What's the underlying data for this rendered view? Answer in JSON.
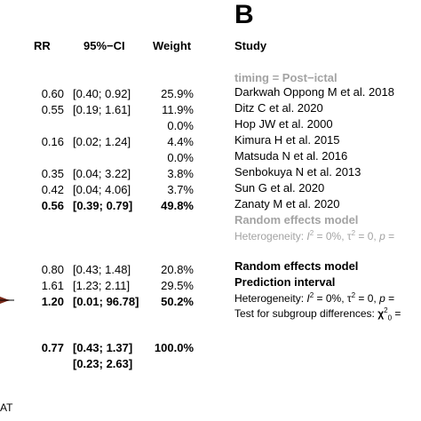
{
  "chart_data": {
    "type": "table",
    "panel_label": "B",
    "columns": {
      "rr": "RR",
      "ci": "95%−CI",
      "weight": "Weight",
      "study": "Study"
    },
    "rows": [
      {
        "kind": "subgroup",
        "study": "timing = Post−ictal"
      },
      {
        "kind": "study",
        "study": "Darkwah Oppong M et al. 2018",
        "rr": "0.60",
        "ci": "[0.40; 0.92]",
        "weight": "25.9%"
      },
      {
        "kind": "study",
        "study": "Ditz C et al. 2020",
        "rr": "0.55",
        "ci": "[0.19; 1.61]",
        "weight": "11.9%"
      },
      {
        "kind": "study",
        "study": "Hop JW et al. 2000",
        "rr": "",
        "ci": "",
        "weight": "0.0%"
      },
      {
        "kind": "study",
        "study": "Kimura H et al. 2015",
        "rr": "0.16",
        "ci": "[0.02; 1.24]",
        "weight": "4.4%"
      },
      {
        "kind": "study",
        "study": "Matsuda N et al. 2016",
        "rr": "",
        "ci": "",
        "weight": "0.0%"
      },
      {
        "kind": "study",
        "study": "Senbokuya N et al. 2013",
        "rr": "0.35",
        "ci": "[0.04; 3.22]",
        "weight": "3.8%"
      },
      {
        "kind": "study",
        "study": "Sun G et al. 2020",
        "rr": "0.42",
        "ci": "[0.04; 4.06]",
        "weight": "3.7%"
      },
      {
        "kind": "study",
        "study": "Zanaty M et al. 2020",
        "rr": "",
        "ci": "",
        "weight": ""
      },
      {
        "kind": "subtotal",
        "study": "Random effects model",
        "rr": "0.56",
        "ci": "[0.39; 0.79]",
        "weight": "49.8%"
      },
      {
        "kind": "heterogeneity",
        "study": "Heterogeneity: I² = 0%, τ² = 0, p ="
      },
      {
        "kind": "study",
        "study": "",
        "rr": "0.80",
        "ci": "[0.43; 1.48]",
        "weight": "20.8%"
      },
      {
        "kind": "study",
        "study": "",
        "rr": "1.61",
        "ci": "[1.23; 2.11]",
        "weight": "29.5%"
      },
      {
        "kind": "subtotal",
        "study": "",
        "rr": "1.20",
        "ci": "[0.01; 96.78]",
        "weight": "50.2%"
      },
      {
        "kind": "overall",
        "study": "Random effects model",
        "rr": "0.77",
        "ci": "[0.43; 1.37]",
        "weight": "100.0%"
      },
      {
        "kind": "prediction",
        "study": "Prediction interval",
        "rr": "",
        "ci": "[0.23; 2.63]",
        "weight": ""
      }
    ],
    "footer": {
      "heterogeneity": "Heterogeneity: I² = 0%, τ² = 0, p =",
      "subgroup_test": "Test for subgroup differences: χ² ="
    },
    "axis_tick_fragment": "AT",
    "colors": {
      "text": "#000000",
      "gray_label": "#a3a3a3",
      "diamond": "#7a2a1a"
    }
  },
  "labels": {
    "row8_rr": "0.56",
    "row8_ci": "[0.39; 0.79]",
    "row8_wt": "49.8%",
    "zanaty": "Zanaty M et al. 2020"
  }
}
